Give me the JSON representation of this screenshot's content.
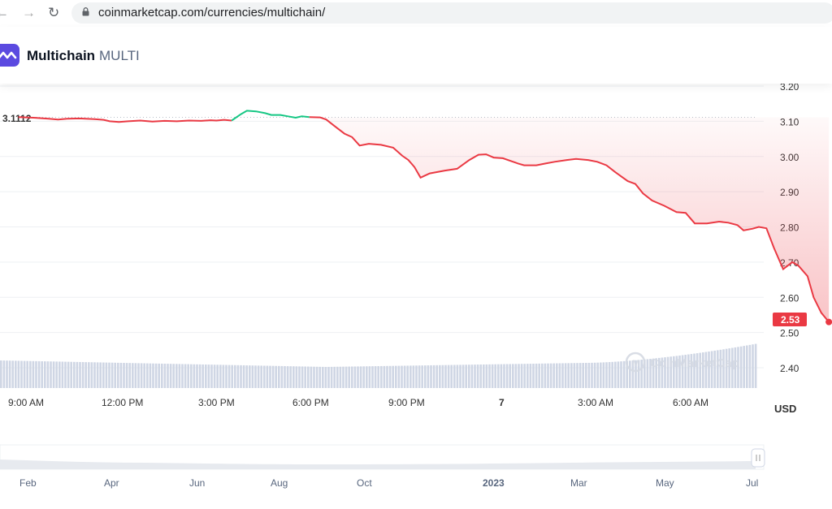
{
  "browser": {
    "url": "coinmarketcap.com/currencies/multichain/",
    "back_icon": "arrow-left-icon",
    "forward_icon": "arrow-right-icon",
    "reload_icon": "reload-icon",
    "lock_icon": "lock-icon"
  },
  "coin": {
    "name": "Multichain",
    "symbol": "MULTI",
    "logo_icon": "multichain-logo-icon"
  },
  "chart_data": {
    "type": "line",
    "y_ticks": [
      "3.20",
      "3.10",
      "3.00",
      "2.90",
      "2.80",
      "2.70",
      "2.60",
      "2.50",
      "2.40"
    ],
    "ylim": [
      2.3707,
      3.2293
    ],
    "x_ticks": [
      "9:00 AM",
      "12:00 PM",
      "3:00 PM",
      "6:00 PM",
      "9:00 PM",
      "7",
      "3:00 AM",
      "6:00 AM"
    ],
    "open_price_label": "3.1112",
    "open_price": 3.1112,
    "current_price_label": "2.53",
    "current_price": 2.53,
    "currency": "USD",
    "watermark": "CoinMarketCap",
    "colors": {
      "up": "#16c784",
      "down": "#ea3943",
      "grid": "#eef0f3",
      "volume": "#cfd6e4"
    },
    "series": [
      {
        "points": [
          [
            0,
            3.112
          ],
          [
            0.5,
            3.11
          ],
          [
            1,
            3.107
          ],
          [
            1.3,
            3.105
          ],
          [
            1.6,
            3.107
          ],
          [
            2,
            3.108
          ],
          [
            2.5,
            3.106
          ],
          [
            2.8,
            3.104
          ],
          [
            3,
            3.1
          ],
          [
            3.3,
            3.098
          ],
          [
            3.6,
            3.1
          ],
          [
            4,
            3.102
          ],
          [
            4.4,
            3.099
          ],
          [
            4.8,
            3.101
          ],
          [
            5.2,
            3.1
          ],
          [
            5.6,
            3.102
          ],
          [
            6,
            3.101
          ],
          [
            6.3,
            3.103
          ],
          [
            6.5,
            3.102
          ],
          [
            6.75,
            3.104
          ],
          [
            7,
            3.102
          ],
          [
            7.3,
            3.12
          ],
          [
            7.5,
            3.13
          ],
          [
            7.8,
            3.128
          ],
          [
            8.1,
            3.123
          ],
          [
            8.3,
            3.118
          ],
          [
            8.6,
            3.118
          ],
          [
            8.85,
            3.114
          ],
          [
            9.1,
            3.11
          ],
          [
            9.3,
            3.114
          ],
          [
            9.55,
            3.112
          ],
          [
            9.9,
            3.111
          ],
          [
            10.1,
            3.105
          ],
          [
            10.4,
            3.085
          ],
          [
            10.7,
            3.065
          ],
          [
            10.95,
            3.055
          ],
          [
            11.2,
            3.031
          ],
          [
            11.5,
            3.036
          ],
          [
            11.9,
            3.033
          ],
          [
            12.3,
            3.025
          ],
          [
            12.6,
            3.002
          ],
          [
            12.8,
            2.99
          ],
          [
            13,
            2.97
          ],
          [
            13.2,
            2.94
          ],
          [
            13.5,
            2.952
          ],
          [
            14,
            2.96
          ],
          [
            14.4,
            2.965
          ],
          [
            14.8,
            2.99
          ],
          [
            15.1,
            3.005
          ],
          [
            15.35,
            3.006
          ],
          [
            15.6,
            2.997
          ],
          [
            15.9,
            2.995
          ],
          [
            16.2,
            2.986
          ],
          [
            16.4,
            2.98
          ],
          [
            16.6,
            2.975
          ],
          [
            17,
            2.975
          ],
          [
            17.3,
            2.98
          ],
          [
            17.6,
            2.985
          ],
          [
            18,
            2.99
          ],
          [
            18.3,
            2.993
          ],
          [
            18.7,
            2.99
          ],
          [
            19,
            2.985
          ],
          [
            19.3,
            2.975
          ],
          [
            19.6,
            2.955
          ],
          [
            20,
            2.93
          ],
          [
            20.25,
            2.922
          ],
          [
            20.5,
            2.895
          ],
          [
            20.8,
            2.875
          ],
          [
            21.2,
            2.86
          ],
          [
            21.6,
            2.842
          ],
          [
            21.9,
            2.84
          ],
          [
            22.2,
            2.81
          ],
          [
            22.6,
            2.81
          ],
          [
            23,
            2.815
          ],
          [
            23.3,
            2.812
          ],
          [
            23.6,
            2.805
          ],
          [
            23.8,
            2.79
          ],
          [
            24.1,
            2.795
          ],
          [
            24.3,
            2.8
          ],
          [
            24.55,
            2.796
          ],
          [
            24.8,
            2.74
          ],
          [
            25.1,
            2.68
          ],
          [
            25.4,
            2.7
          ],
          [
            25.6,
            2.69
          ],
          [
            25.9,
            2.66
          ],
          [
            26.1,
            2.6
          ],
          [
            26.35,
            2.556
          ],
          [
            26.6,
            2.53
          ]
        ]
      }
    ]
  }
}
